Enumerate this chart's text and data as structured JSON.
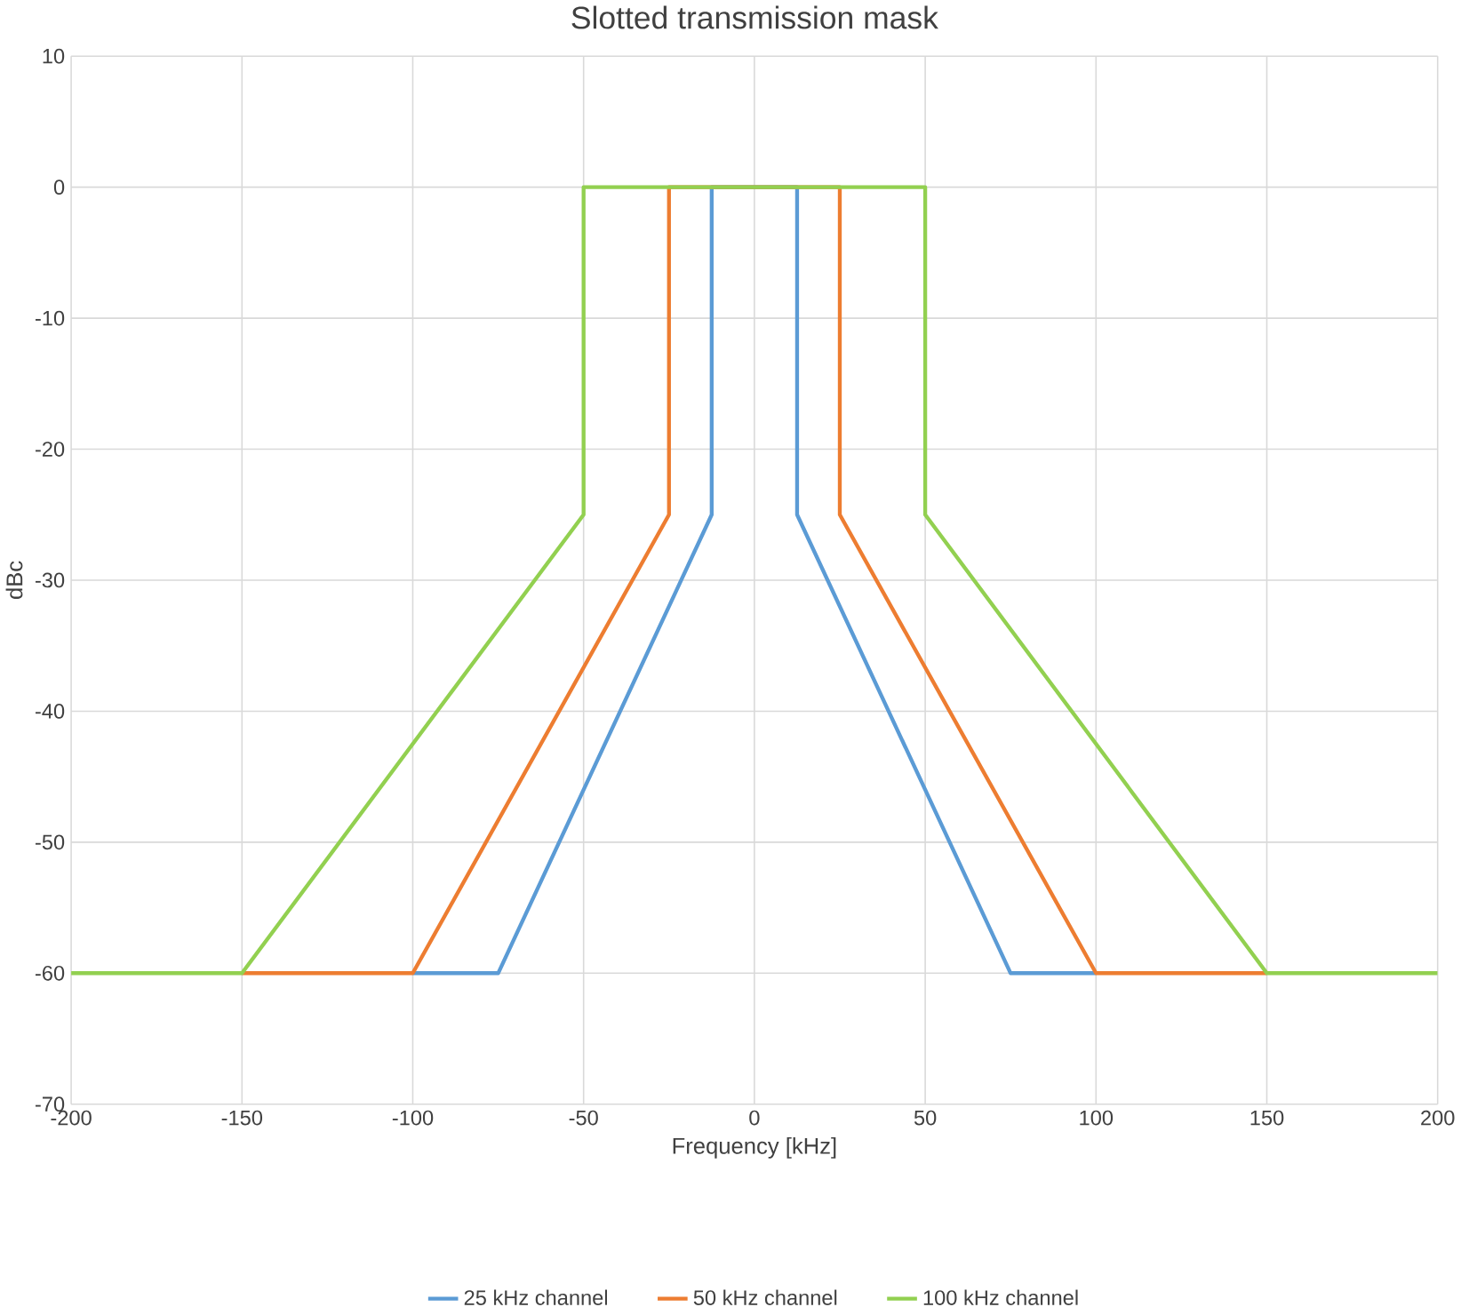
{
  "chart_data": {
    "type": "line",
    "title": "Slotted transmission mask",
    "xlabel": "Frequency [kHz]",
    "ylabel": "dBc",
    "xlim": [
      -200,
      200
    ],
    "ylim": [
      -70,
      10
    ],
    "xticks": [
      -200,
      -150,
      -100,
      -50,
      0,
      50,
      100,
      150,
      200
    ],
    "yticks": [
      -70,
      -60,
      -50,
      -40,
      -30,
      -20,
      -10,
      0,
      10
    ],
    "grid": true,
    "legend": "bottom",
    "marker": "none",
    "line_style": "solid",
    "series": [
      {
        "name": "25 kHz channel",
        "color": "#5b9bd5",
        "x": [
          -100,
          -75,
          -12.5,
          -12.5,
          12.5,
          12.5,
          75,
          100
        ],
        "values": [
          -60,
          -60,
          -25,
          0,
          0,
          -25,
          -60,
          -60
        ]
      },
      {
        "name": "50 kHz channel",
        "color": "#ed7d31",
        "x": [
          -150,
          -100,
          -25,
          -25,
          25,
          25,
          100,
          150
        ],
        "values": [
          -60,
          -60,
          -25,
          0,
          0,
          -25,
          -60,
          -60
        ]
      },
      {
        "name": "100 kHz channel",
        "color": "#92d050",
        "x": [
          -200,
          -150,
          -50,
          -50,
          50,
          50,
          150,
          200
        ],
        "values": [
          -60,
          -60,
          -25,
          0,
          0,
          -25,
          -60,
          -60
        ]
      }
    ]
  }
}
